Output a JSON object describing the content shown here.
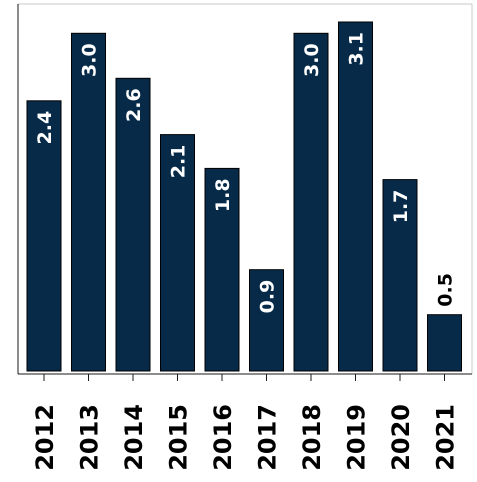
{
  "chart_data": {
    "type": "bar",
    "title": "",
    "xlabel": "",
    "ylabel": "",
    "categories": [
      "2012",
      "2013",
      "2014",
      "2015",
      "2016",
      "2017",
      "2018",
      "2019",
      "2020",
      "2021"
    ],
    "values": [
      2.4,
      3.0,
      2.6,
      2.1,
      1.8,
      0.9,
      3.0,
      3.1,
      1.7,
      0.5
    ],
    "value_labels": [
      "2.4",
      "3.0",
      "2.6",
      "2.1",
      "1.8",
      "0.9",
      "3.0",
      "3.1",
      "1.7",
      "0.5"
    ],
    "ylim": [
      0,
      3.1
    ],
    "grid": false,
    "bar_color": "#062a48",
    "label_color_inside": "#ffffff",
    "label_color_outside": "#000000"
  }
}
